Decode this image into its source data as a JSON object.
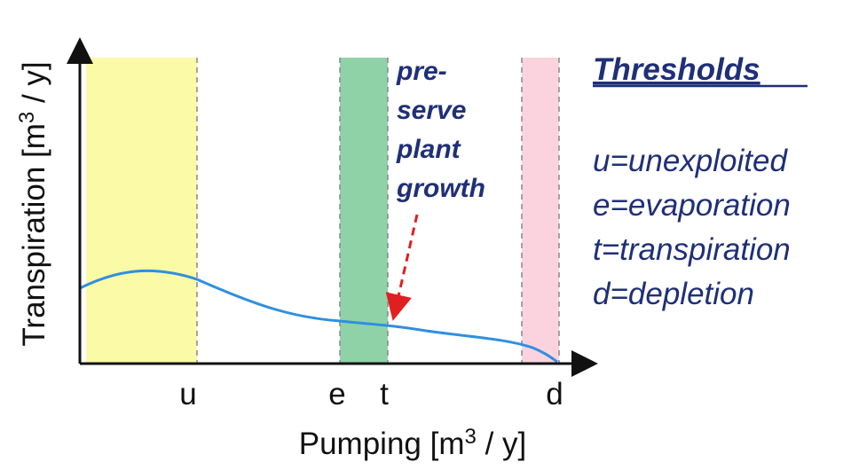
{
  "axes": {
    "y_label": {
      "before": "Transpiration [m",
      "sup": "3",
      "after": " / y]"
    },
    "x_label": {
      "before": "Pumping [m",
      "sup": "3",
      "after": " / y]"
    }
  },
  "threshold_marks": [
    "u",
    "e",
    "t",
    "d"
  ],
  "annotation": [
    "pre-",
    "serve",
    "plant",
    "growth"
  ],
  "legend": {
    "title": "Thresholds",
    "items": [
      "u=unexploited",
      "e=evaporation",
      "t=transpiration",
      "d=depletion"
    ]
  }
}
